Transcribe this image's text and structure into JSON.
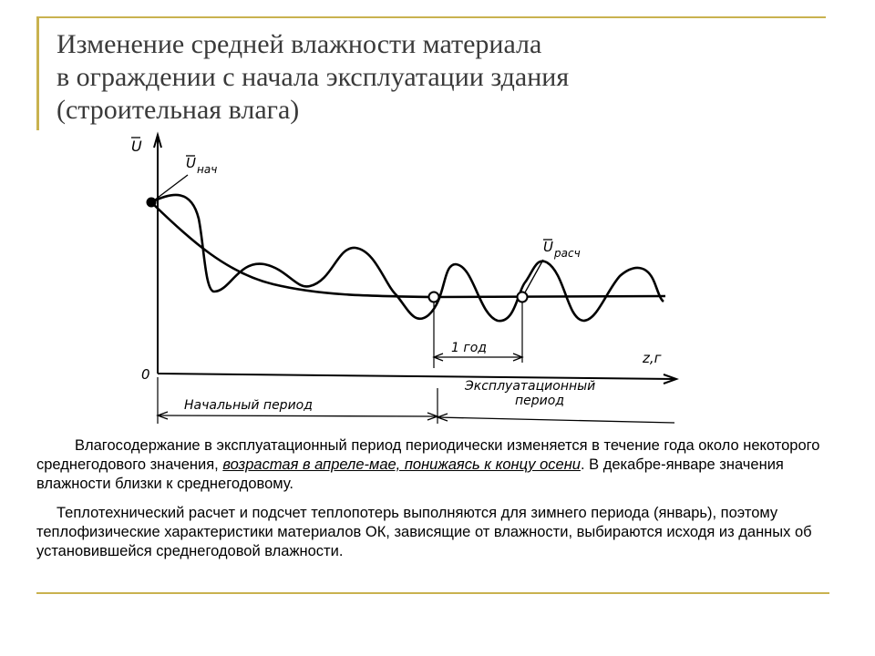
{
  "title": {
    "line1": "Изменение средней влажности материала",
    "line2": "в ограждении с начала эксплуатации здания",
    "line3": "(строительная влага)"
  },
  "diagram": {
    "y_axis_label": "U",
    "x_axis_label": "z,г",
    "zero_label": "0",
    "initial_value_label": "U",
    "initial_value_subscript": "нач",
    "design_value_label": "U",
    "design_value_subscript": "расч",
    "one_year_label": "1 год",
    "initial_period_label": "Начальный  период",
    "operational_period_line1": "Эксплуатационный",
    "operational_period_line2": "период"
  },
  "paragraph1": {
    "before": "Влагосодержание в эксплуатационный период периодически изменяется в течение года около некоторого среднегодового значения, ",
    "emphasis": "возрастая в апреле-мае, понижаясь к концу осени",
    "after": ". В декабре-январе значения влажности близки к среднегодовому."
  },
  "paragraph2": {
    "text": "Теплотехнический расчет и подсчет теплопотерь выполняются для зимнего периода (январь), поэтому теплофизические характеристики материалов ОК, зависящие от влажности, выбираются исходя из данных об установившейся среднегодовой влажности."
  }
}
